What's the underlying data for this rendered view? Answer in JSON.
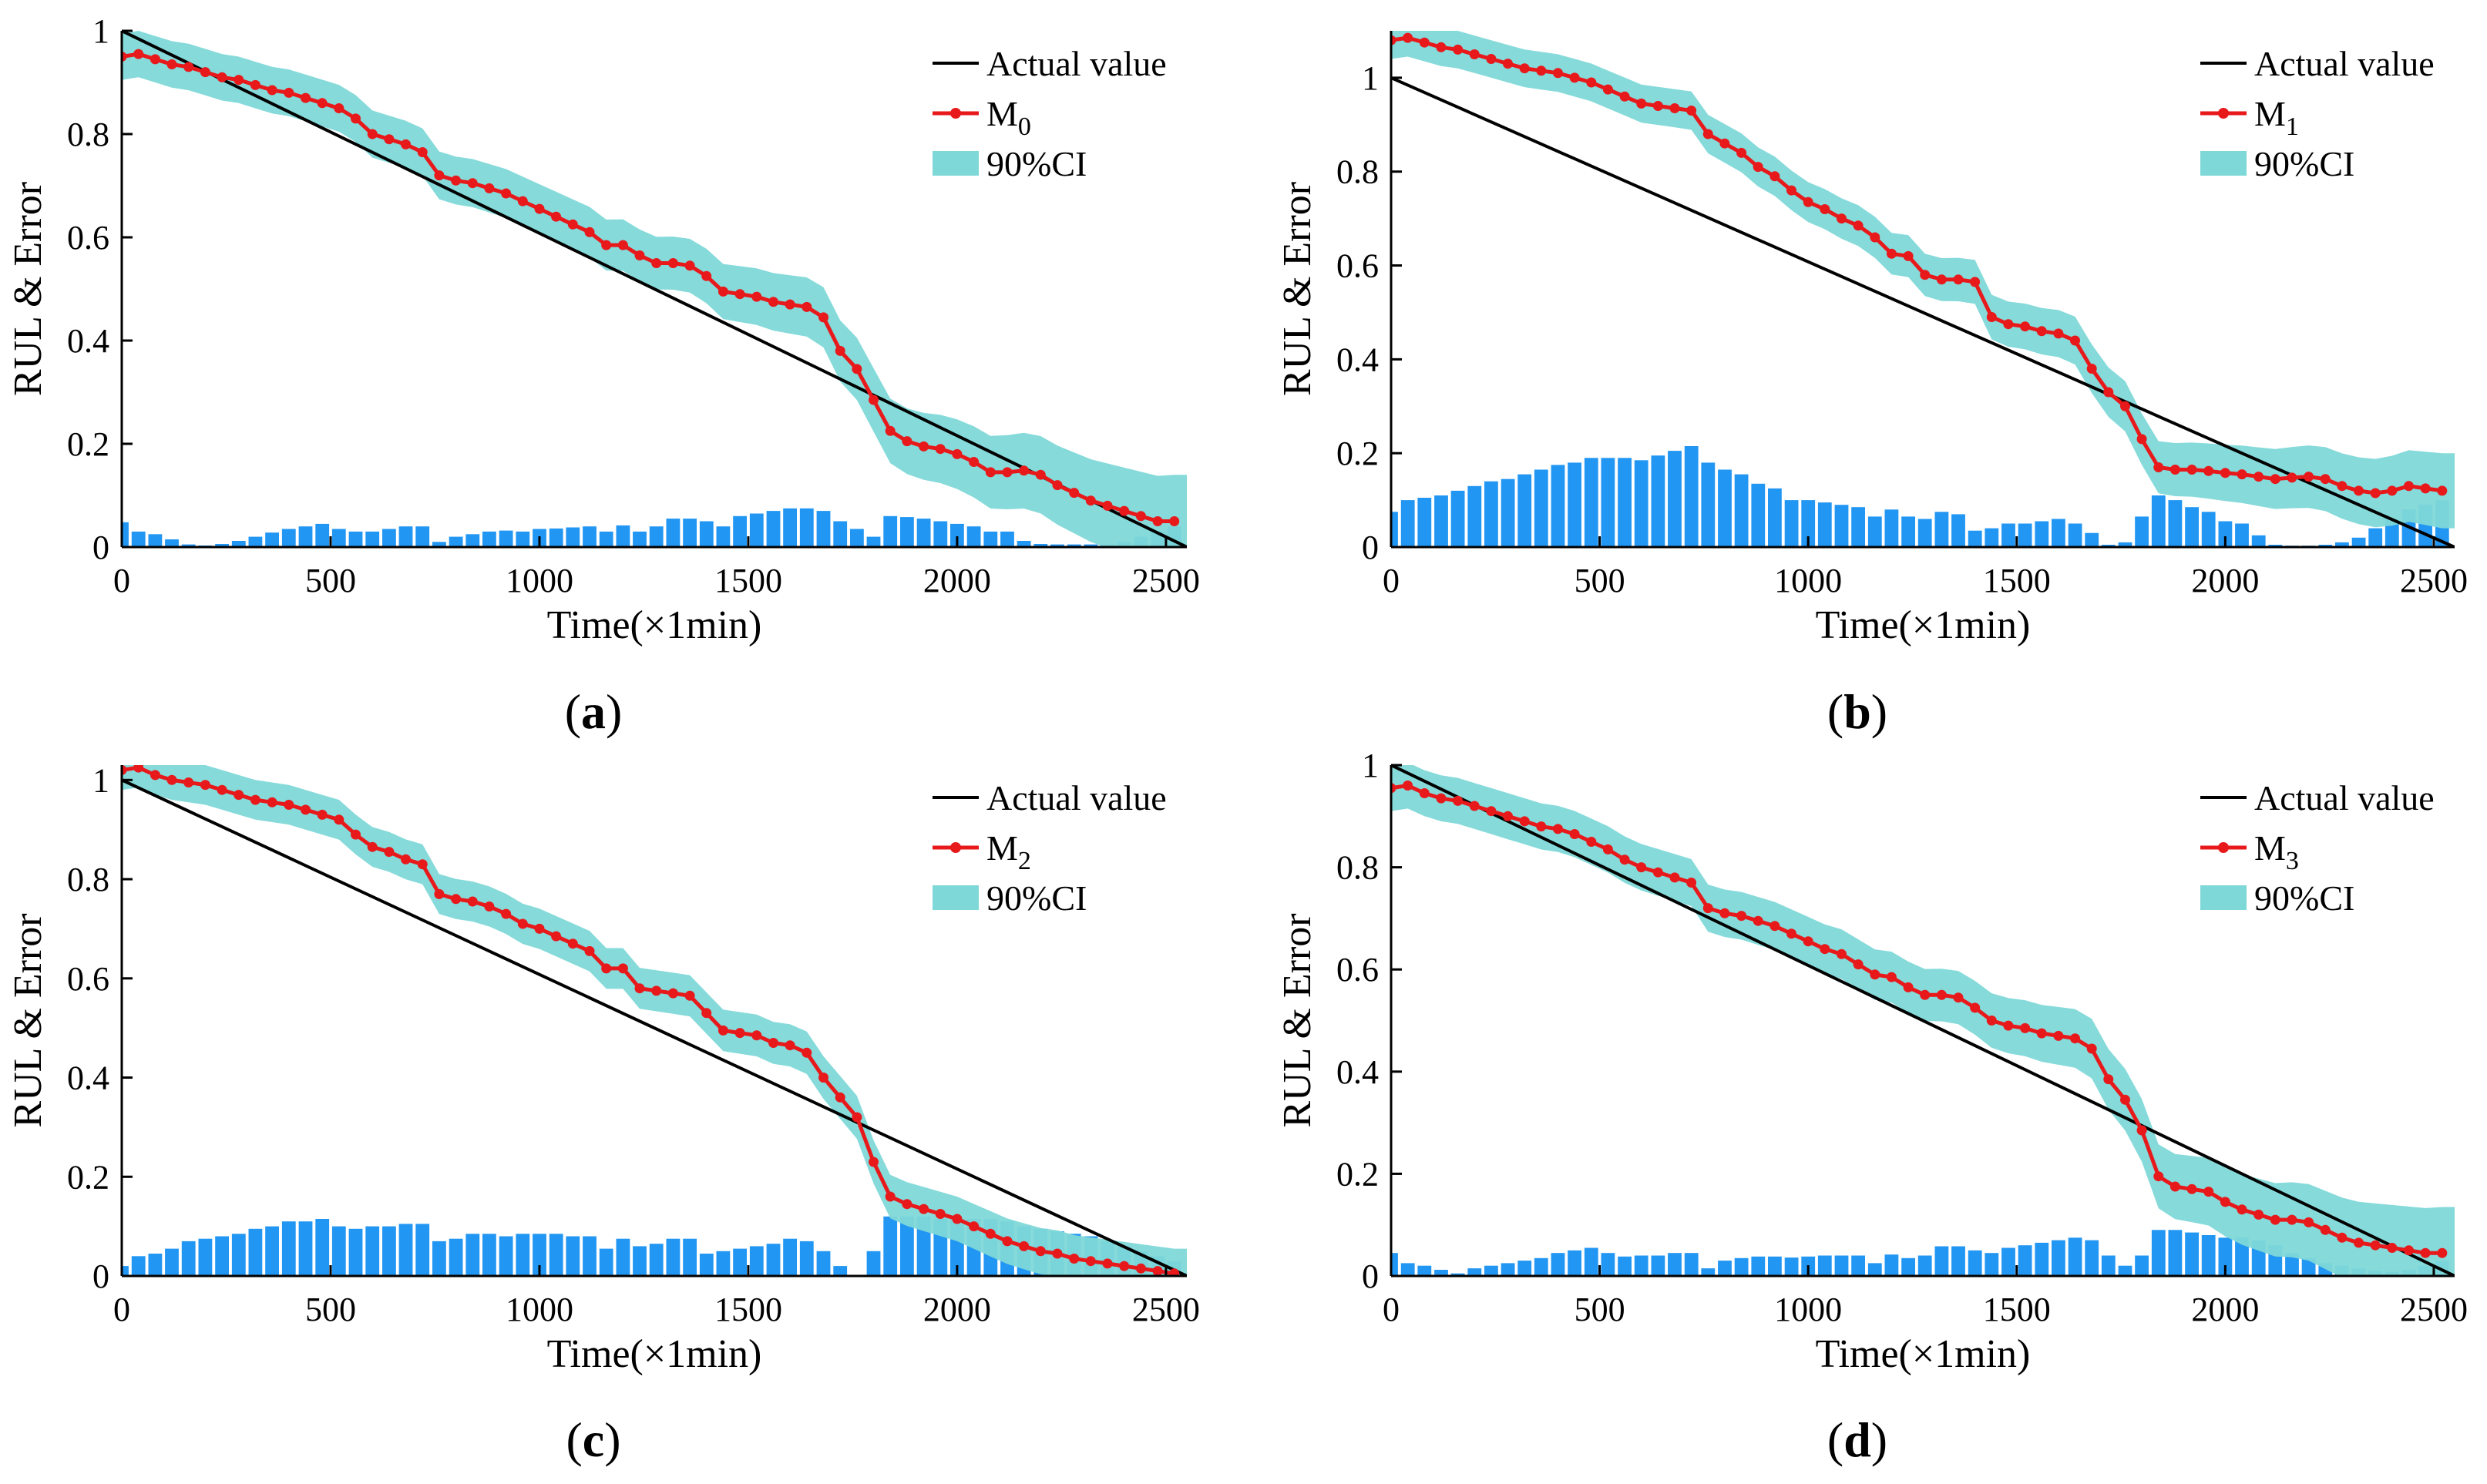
{
  "figure": {
    "panels": [
      "a",
      "b",
      "c",
      "d"
    ]
  },
  "colors": {
    "actual": "#000000",
    "predicted": "#e8191b",
    "ci": "#7fd8d8",
    "error_bars": "#2196f3"
  },
  "chart_data": [
    {
      "id": "a",
      "type": "line",
      "panel_label": "a",
      "xlabel": "Time(×1min)",
      "ylabel": "RUL & Error",
      "xlim": [
        0,
        2550
      ],
      "ylim": [
        0,
        1
      ],
      "xticks": [
        0,
        500,
        1000,
        1500,
        2000,
        2500
      ],
      "yticks": [
        0,
        0.2,
        0.4,
        0.6,
        0.8,
        1
      ],
      "ytick_labels": [
        "0",
        "0.2",
        "0.4",
        "0.6",
        "0.8",
        "1"
      ],
      "legend": {
        "position": "top-right",
        "actual_label": "Actual value",
        "model_label": "M",
        "model_subscript": "0",
        "ci_label": "90%CI"
      },
      "actual_line": {
        "x": [
          0,
          2550
        ],
        "y": [
          1,
          0
        ]
      },
      "pred_x": [
        0,
        40,
        80,
        120,
        160,
        200,
        240,
        280,
        320,
        360,
        400,
        440,
        480,
        520,
        560,
        600,
        640,
        680,
        720,
        760,
        800,
        840,
        880,
        920,
        960,
        1000,
        1040,
        1080,
        1120,
        1160,
        1200,
        1240,
        1280,
        1320,
        1360,
        1400,
        1440,
        1480,
        1520,
        1560,
        1600,
        1640,
        1680,
        1720,
        1760,
        1800,
        1840,
        1880,
        1920,
        1960,
        2000,
        2040,
        2080,
        2120,
        2160,
        2200,
        2240,
        2280,
        2320,
        2360,
        2400,
        2440,
        2480,
        2520
      ],
      "pred_y": [
        0.95,
        0.955,
        0.945,
        0.935,
        0.93,
        0.92,
        0.91,
        0.905,
        0.895,
        0.885,
        0.88,
        0.87,
        0.86,
        0.85,
        0.83,
        0.8,
        0.79,
        0.78,
        0.765,
        0.72,
        0.71,
        0.705,
        0.695,
        0.685,
        0.67,
        0.655,
        0.64,
        0.625,
        0.61,
        0.585,
        0.585,
        0.565,
        0.55,
        0.55,
        0.545,
        0.525,
        0.495,
        0.49,
        0.485,
        0.475,
        0.47,
        0.465,
        0.445,
        0.38,
        0.345,
        0.285,
        0.225,
        0.205,
        0.195,
        0.19,
        0.18,
        0.165,
        0.145,
        0.145,
        0.148,
        0.14,
        0.12,
        0.105,
        0.09,
        0.08,
        0.07,
        0.06,
        0.05,
        0.05
      ],
      "ci_half_width": 0.045,
      "ci_tail_width": 0.09,
      "error_x": [
        0,
        40,
        80,
        120,
        160,
        200,
        240,
        280,
        320,
        360,
        400,
        440,
        480,
        520,
        560,
        600,
        640,
        680,
        720,
        760,
        800,
        840,
        880,
        920,
        960,
        1000,
        1040,
        1080,
        1120,
        1160,
        1200,
        1240,
        1280,
        1320,
        1360,
        1400,
        1440,
        1480,
        1520,
        1560,
        1600,
        1640,
        1680,
        1720,
        1760,
        1800,
        1840,
        1880,
        1920,
        1960,
        2000,
        2040,
        2080,
        2120,
        2160,
        2200,
        2240,
        2280,
        2320,
        2360,
        2400,
        2440,
        2480,
        2520
      ],
      "error_values": [
        0.048,
        0.03,
        0.025,
        0.015,
        0.005,
        0.003,
        0.006,
        0.012,
        0.02,
        0.028,
        0.035,
        0.04,
        0.045,
        0.035,
        0.03,
        0.03,
        0.035,
        0.04,
        0.04,
        0.01,
        0.02,
        0.025,
        0.03,
        0.032,
        0.03,
        0.035,
        0.036,
        0.038,
        0.04,
        0.03,
        0.042,
        0.03,
        0.04,
        0.055,
        0.055,
        0.05,
        0.04,
        0.06,
        0.065,
        0.07,
        0.075,
        0.075,
        0.07,
        0.05,
        0.035,
        0.02,
        0.06,
        0.058,
        0.055,
        0.05,
        0.045,
        0.04,
        0.03,
        0.03,
        0.012,
        0.006,
        0.005,
        0.005,
        0.005,
        0.005,
        0.01,
        0.02,
        0.03,
        0.04
      ]
    },
    {
      "id": "b",
      "type": "line",
      "panel_label": "b",
      "xlabel": "Time(×1min)",
      "ylabel": "RUL & Error",
      "xlim": [
        0,
        2550
      ],
      "ylim": [
        0,
        1.1
      ],
      "xticks": [
        0,
        500,
        1000,
        1500,
        2000,
        2500
      ],
      "yticks": [
        0,
        0.2,
        0.4,
        0.6,
        0.8,
        1
      ],
      "ytick_labels": [
        "0",
        "0.2",
        "0.4",
        "0.6",
        "0.8",
        "1"
      ],
      "legend": {
        "position": "top-right",
        "actual_label": "Actual value",
        "model_label": "M",
        "model_subscript": "1",
        "ci_label": "90%CI"
      },
      "actual_line": {
        "x": [
          0,
          2550
        ],
        "y": [
          1,
          0
        ]
      },
      "pred_x": [
        0,
        40,
        80,
        120,
        160,
        200,
        240,
        280,
        320,
        360,
        400,
        440,
        480,
        520,
        560,
        600,
        640,
        680,
        720,
        760,
        800,
        840,
        880,
        920,
        960,
        1000,
        1040,
        1080,
        1120,
        1160,
        1200,
        1240,
        1280,
        1320,
        1360,
        1400,
        1440,
        1480,
        1520,
        1560,
        1600,
        1640,
        1680,
        1720,
        1760,
        1800,
        1840,
        1880,
        1920,
        1960,
        2000,
        2040,
        2080,
        2120,
        2160,
        2200,
        2240,
        2280,
        2320,
        2360,
        2400,
        2440,
        2480,
        2520
      ],
      "pred_y": [
        1.08,
        1.085,
        1.075,
        1.065,
        1.06,
        1.05,
        1.04,
        1.03,
        1.02,
        1.015,
        1.01,
        1.0,
        0.99,
        0.975,
        0.96,
        0.945,
        0.94,
        0.935,
        0.93,
        0.88,
        0.86,
        0.84,
        0.81,
        0.79,
        0.76,
        0.735,
        0.72,
        0.7,
        0.685,
        0.66,
        0.625,
        0.62,
        0.58,
        0.57,
        0.57,
        0.565,
        0.49,
        0.475,
        0.47,
        0.46,
        0.455,
        0.44,
        0.38,
        0.33,
        0.3,
        0.23,
        0.17,
        0.165,
        0.165,
        0.162,
        0.158,
        0.155,
        0.15,
        0.145,
        0.148,
        0.15,
        0.145,
        0.13,
        0.12,
        0.115,
        0.12,
        0.13,
        0.125,
        0.12
      ],
      "ci_half_width": 0.04,
      "ci_tail_width": 0.08,
      "error_x": [
        0,
        40,
        80,
        120,
        160,
        200,
        240,
        280,
        320,
        360,
        400,
        440,
        480,
        520,
        560,
        600,
        640,
        680,
        720,
        760,
        800,
        840,
        880,
        920,
        960,
        1000,
        1040,
        1080,
        1120,
        1160,
        1200,
        1240,
        1280,
        1320,
        1360,
        1400,
        1440,
        1480,
        1520,
        1560,
        1600,
        1640,
        1680,
        1720,
        1760,
        1800,
        1840,
        1880,
        1920,
        1960,
        2000,
        2040,
        2080,
        2120,
        2160,
        2200,
        2240,
        2280,
        2320,
        2360,
        2400,
        2440,
        2480,
        2520
      ],
      "error_values": [
        0.075,
        0.1,
        0.105,
        0.11,
        0.12,
        0.13,
        0.14,
        0.145,
        0.155,
        0.165,
        0.175,
        0.18,
        0.19,
        0.19,
        0.19,
        0.185,
        0.195,
        0.205,
        0.215,
        0.18,
        0.165,
        0.155,
        0.135,
        0.125,
        0.1,
        0.1,
        0.095,
        0.09,
        0.085,
        0.065,
        0.08,
        0.065,
        0.06,
        0.075,
        0.07,
        0.035,
        0.04,
        0.05,
        0.05,
        0.055,
        0.06,
        0.05,
        0.03,
        0.005,
        0.01,
        0.065,
        0.11,
        0.1,
        0.085,
        0.075,
        0.055,
        0.05,
        0.025,
        0.005,
        0.003,
        0.003,
        0.005,
        0.01,
        0.02,
        0.04,
        0.06,
        0.08,
        0.09,
        0.1
      ]
    },
    {
      "id": "c",
      "type": "line",
      "panel_label": "c",
      "xlabel": "Time(×1min)",
      "ylabel": "RUL & Error",
      "xlim": [
        0,
        2550
      ],
      "ylim": [
        0,
        1.03
      ],
      "xticks": [
        0,
        500,
        1000,
        1500,
        2000,
        2500
      ],
      "yticks": [
        0,
        0.2,
        0.4,
        0.6,
        0.8,
        1
      ],
      "ytick_labels": [
        "0",
        "0.2",
        "0.4",
        "0.6",
        "0.8",
        "1"
      ],
      "legend": {
        "position": "top-right",
        "actual_label": "Actual value",
        "model_label": "M",
        "model_subscript": "2",
        "ci_label": "90%CI"
      },
      "actual_line": {
        "x": [
          0,
          2550
        ],
        "y": [
          1,
          0
        ]
      },
      "pred_x": [
        0,
        40,
        80,
        120,
        160,
        200,
        240,
        280,
        320,
        360,
        400,
        440,
        480,
        520,
        560,
        600,
        640,
        680,
        720,
        760,
        800,
        840,
        880,
        920,
        960,
        1000,
        1040,
        1080,
        1120,
        1160,
        1200,
        1240,
        1280,
        1320,
        1360,
        1400,
        1440,
        1480,
        1520,
        1560,
        1600,
        1640,
        1680,
        1720,
        1760,
        1800,
        1840,
        1880,
        1920,
        1960,
        2000,
        2040,
        2080,
        2120,
        2160,
        2200,
        2240,
        2280,
        2320,
        2360,
        2400,
        2440,
        2480,
        2520
      ],
      "pred_y": [
        1.02,
        1.025,
        1.01,
        1.0,
        0.995,
        0.99,
        0.98,
        0.97,
        0.96,
        0.955,
        0.95,
        0.94,
        0.93,
        0.92,
        0.89,
        0.865,
        0.855,
        0.84,
        0.83,
        0.77,
        0.76,
        0.755,
        0.745,
        0.73,
        0.71,
        0.7,
        0.685,
        0.67,
        0.655,
        0.62,
        0.62,
        0.58,
        0.575,
        0.57,
        0.565,
        0.53,
        0.495,
        0.49,
        0.485,
        0.47,
        0.465,
        0.45,
        0.4,
        0.36,
        0.32,
        0.23,
        0.16,
        0.145,
        0.135,
        0.125,
        0.115,
        0.1,
        0.085,
        0.07,
        0.06,
        0.05,
        0.045,
        0.035,
        0.03,
        0.025,
        0.02,
        0.015,
        0.01,
        0.005
      ],
      "ci_half_width": 0.04,
      "ci_tail_width": 0.05,
      "error_x": [
        0,
        40,
        80,
        120,
        160,
        200,
        240,
        280,
        320,
        360,
        400,
        440,
        480,
        520,
        560,
        600,
        640,
        680,
        720,
        760,
        800,
        840,
        880,
        920,
        960,
        1000,
        1040,
        1080,
        1120,
        1160,
        1200,
        1240,
        1280,
        1320,
        1360,
        1400,
        1440,
        1480,
        1520,
        1560,
        1600,
        1640,
        1680,
        1720,
        1760,
        1800,
        1840,
        1880,
        1920,
        1960,
        2000,
        2040,
        2080,
        2120,
        2160,
        2200,
        2240,
        2280,
        2320,
        2360,
        2400,
        2440,
        2480,
        2520
      ],
      "error_values": [
        0.02,
        0.04,
        0.045,
        0.055,
        0.07,
        0.075,
        0.08,
        0.085,
        0.095,
        0.1,
        0.11,
        0.11,
        0.115,
        0.1,
        0.095,
        0.1,
        0.1,
        0.105,
        0.105,
        0.07,
        0.075,
        0.085,
        0.085,
        0.08,
        0.085,
        0.085,
        0.085,
        0.08,
        0.08,
        0.055,
        0.075,
        0.06,
        0.065,
        0.075,
        0.075,
        0.045,
        0.05,
        0.055,
        0.06,
        0.065,
        0.075,
        0.07,
        0.05,
        0.02,
        0.0,
        0.05,
        0.12,
        0.12,
        0.12,
        0.115,
        0.115,
        0.115,
        0.115,
        0.11,
        0.1,
        0.095,
        0.09,
        0.085,
        0.08,
        0.07,
        0.06,
        0.05,
        0.04,
        0.03
      ]
    },
    {
      "id": "d",
      "type": "line",
      "panel_label": "d",
      "xlabel": "Time(×1min)",
      "ylabel": "RUL & Error",
      "xlim": [
        0,
        2550
      ],
      "ylim": [
        0,
        1
      ],
      "xticks": [
        0,
        500,
        1000,
        1500,
        2000,
        2500
      ],
      "yticks": [
        0,
        0.2,
        0.4,
        0.6,
        0.8,
        1
      ],
      "ytick_labels": [
        "0",
        "0.2",
        "0.4",
        "0.6",
        "0.8",
        "1"
      ],
      "legend": {
        "position": "top-right",
        "actual_label": "Actual value",
        "model_label": "M",
        "model_subscript": "3",
        "ci_label": "90%CI"
      },
      "actual_line": {
        "x": [
          0,
          2550
        ],
        "y": [
          1,
          0
        ]
      },
      "pred_x": [
        0,
        40,
        80,
        120,
        160,
        200,
        240,
        280,
        320,
        360,
        400,
        440,
        480,
        520,
        560,
        600,
        640,
        680,
        720,
        760,
        800,
        840,
        880,
        920,
        960,
        1000,
        1040,
        1080,
        1120,
        1160,
        1200,
        1240,
        1280,
        1320,
        1360,
        1400,
        1440,
        1480,
        1520,
        1560,
        1600,
        1640,
        1680,
        1720,
        1760,
        1800,
        1840,
        1880,
        1920,
        1960,
        2000,
        2040,
        2080,
        2120,
        2160,
        2200,
        2240,
        2280,
        2320,
        2360,
        2400,
        2440,
        2480,
        2520
      ],
      "pred_y": [
        0.955,
        0.96,
        0.945,
        0.935,
        0.93,
        0.92,
        0.91,
        0.9,
        0.89,
        0.88,
        0.875,
        0.865,
        0.85,
        0.835,
        0.815,
        0.8,
        0.79,
        0.78,
        0.77,
        0.72,
        0.71,
        0.705,
        0.695,
        0.685,
        0.67,
        0.655,
        0.64,
        0.63,
        0.61,
        0.59,
        0.585,
        0.565,
        0.55,
        0.55,
        0.545,
        0.525,
        0.5,
        0.49,
        0.485,
        0.475,
        0.47,
        0.465,
        0.445,
        0.385,
        0.345,
        0.285,
        0.195,
        0.175,
        0.17,
        0.165,
        0.145,
        0.13,
        0.12,
        0.11,
        0.11,
        0.105,
        0.09,
        0.075,
        0.065,
        0.06,
        0.055,
        0.05,
        0.045,
        0.045
      ],
      "ci_half_width": 0.045,
      "ci_tail_width": 0.09,
      "error_x": [
        0,
        40,
        80,
        120,
        160,
        200,
        240,
        280,
        320,
        360,
        400,
        440,
        480,
        520,
        560,
        600,
        640,
        680,
        720,
        760,
        800,
        840,
        880,
        920,
        960,
        1000,
        1040,
        1080,
        1120,
        1160,
        1200,
        1240,
        1280,
        1320,
        1360,
        1400,
        1440,
        1480,
        1520,
        1560,
        1600,
        1640,
        1680,
        1720,
        1760,
        1800,
        1840,
        1880,
        1920,
        1960,
        2000,
        2040,
        2080,
        2120,
        2160,
        2200,
        2240,
        2280,
        2320,
        2360,
        2400,
        2440,
        2480,
        2520
      ],
      "error_values": [
        0.045,
        0.025,
        0.02,
        0.012,
        0.005,
        0.015,
        0.02,
        0.025,
        0.03,
        0.035,
        0.045,
        0.05,
        0.055,
        0.045,
        0.038,
        0.04,
        0.04,
        0.045,
        0.045,
        0.015,
        0.03,
        0.035,
        0.038,
        0.038,
        0.036,
        0.038,
        0.04,
        0.04,
        0.04,
        0.025,
        0.042,
        0.035,
        0.04,
        0.058,
        0.058,
        0.05,
        0.045,
        0.055,
        0.06,
        0.065,
        0.07,
        0.075,
        0.07,
        0.04,
        0.02,
        0.04,
        0.09,
        0.09,
        0.085,
        0.08,
        0.075,
        0.075,
        0.07,
        0.06,
        0.045,
        0.035,
        0.025,
        0.02,
        0.015,
        0.01,
        0.008,
        0.012,
        0.02,
        0.03
      ]
    }
  ]
}
